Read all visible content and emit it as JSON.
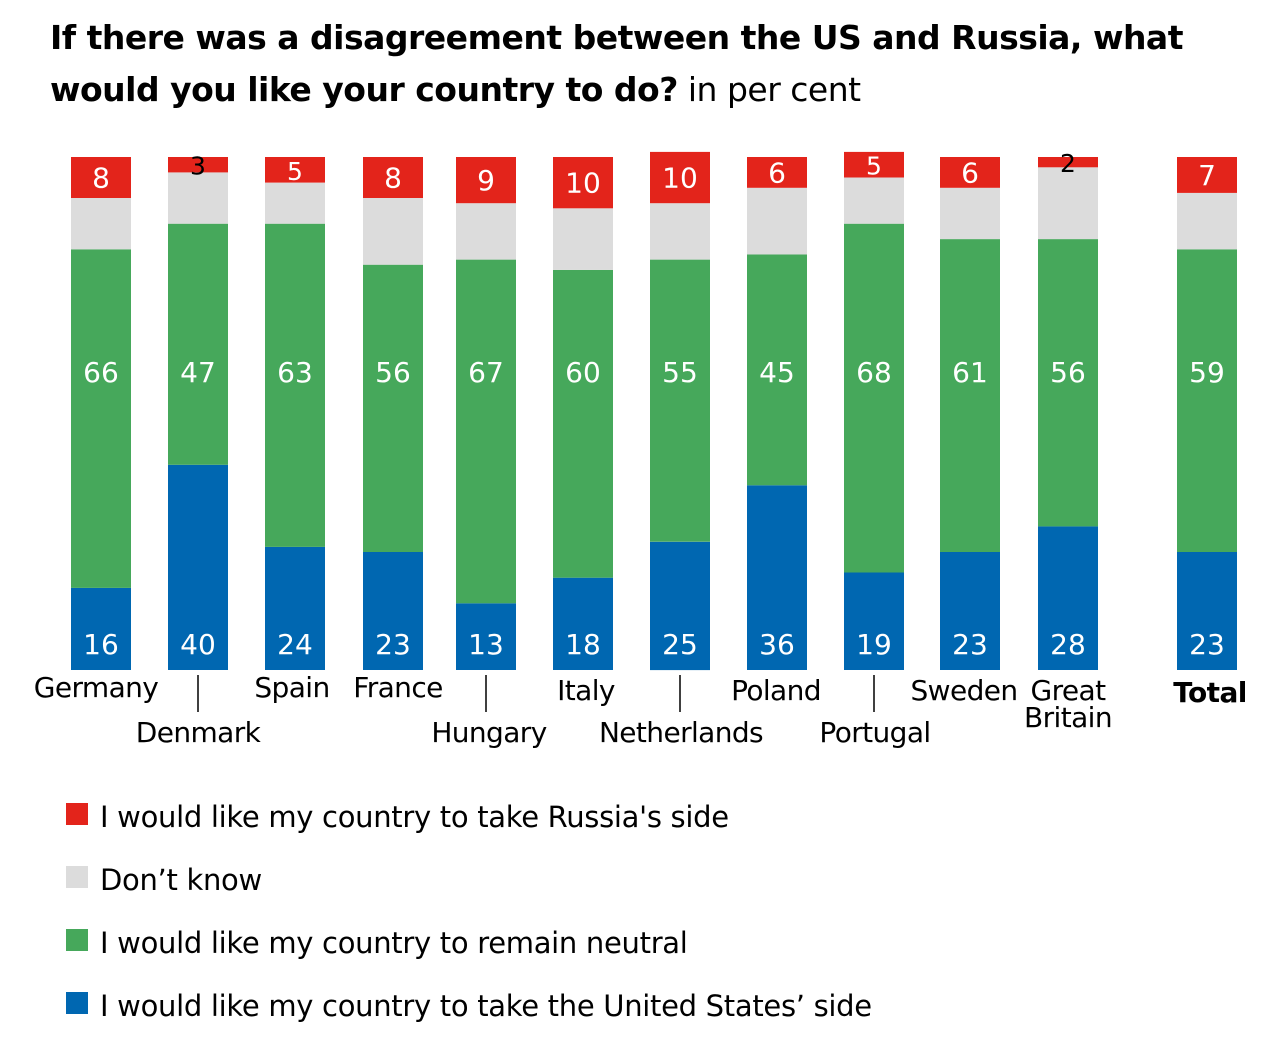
{
  "title": {
    "main": "If there was a disagreement between the US and Russia, what would you like your country to do?",
    "unit": "in per cent"
  },
  "colors": {
    "russia": "#e3241b",
    "dont_know": "#dcdcdc",
    "neutral": "#46a85b",
    "us": "#0067b1"
  },
  "legend": [
    {
      "key": "russia",
      "label": "I would like my country to take Russia's side"
    },
    {
      "key": "dont_know",
      "label": "Don’t know"
    },
    {
      "key": "neutral",
      "label": "I would like my country to remain neutral"
    },
    {
      "key": "us",
      "label": "I would like my country to take the United States’ side"
    }
  ],
  "chart_data": {
    "type": "bar",
    "stacked": true,
    "categories": [
      "Germany",
      "Denmark",
      "Spain",
      "France",
      "Hungary",
      "Italy",
      "Netherlands",
      "Poland",
      "Portugal",
      "Sweden",
      "Great Britain",
      "Total"
    ],
    "series": [
      {
        "name": "I would like my country to take the United States’ side",
        "key": "us",
        "values": [
          16,
          40,
          24,
          23,
          13,
          18,
          25,
          36,
          19,
          23,
          28,
          23
        ]
      },
      {
        "name": "I would like my country to remain neutral",
        "key": "neutral",
        "values": [
          66,
          47,
          63,
          56,
          67,
          60,
          55,
          45,
          68,
          61,
          56,
          59
        ]
      },
      {
        "name": "Don’t know",
        "key": "dont_know",
        "values": [
          10,
          10,
          8,
          13,
          11,
          12,
          11,
          13,
          9,
          10,
          14,
          11
        ]
      },
      {
        "name": "I would like my country to take Russia's side",
        "key": "russia",
        "values": [
          8,
          3,
          5,
          8,
          9,
          10,
          10,
          6,
          5,
          6,
          2,
          7
        ]
      }
    ],
    "labeled_series": [
      "us",
      "neutral",
      "russia"
    ],
    "ylim": [
      0,
      100
    ],
    "legend_position": "bottom-left"
  }
}
